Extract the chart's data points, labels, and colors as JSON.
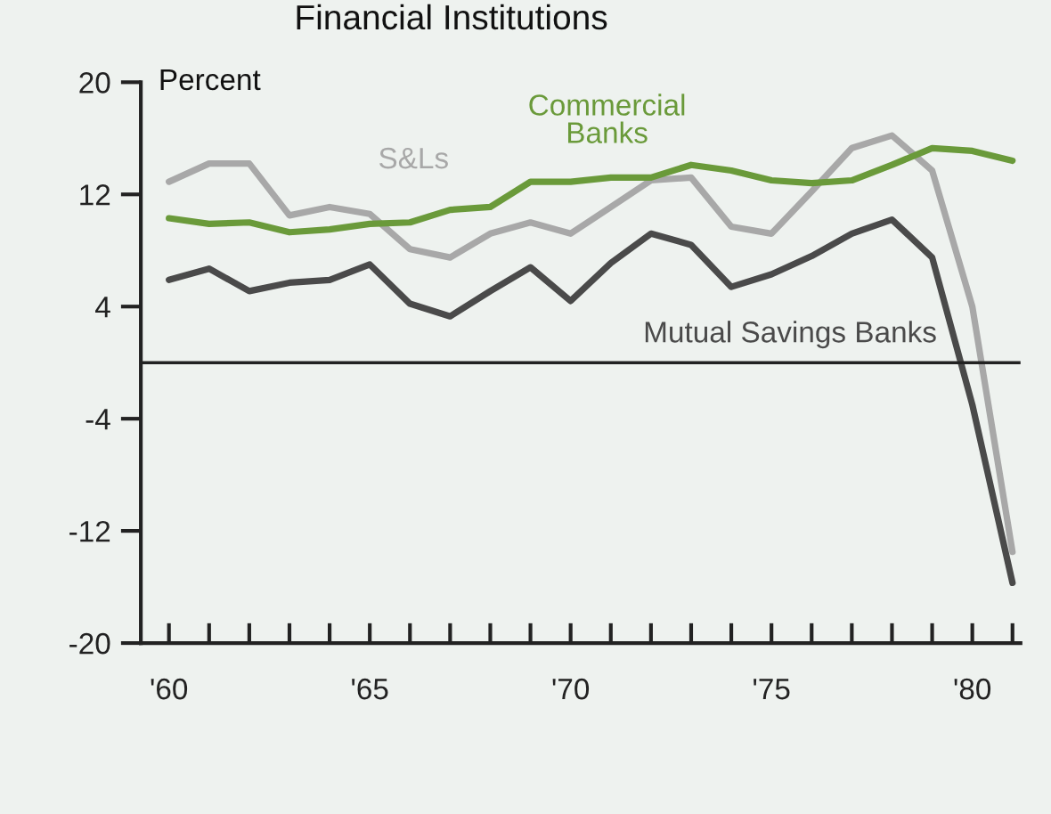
{
  "chart_data": {
    "type": "line",
    "title": "Financial Institutions",
    "ylabel": "Percent",
    "x": [
      1960,
      1961,
      1962,
      1963,
      1964,
      1965,
      1966,
      1967,
      1968,
      1969,
      1970,
      1971,
      1972,
      1973,
      1974,
      1975,
      1976,
      1977,
      1978,
      1979,
      1980,
      1981
    ],
    "series": [
      {
        "name": "S&Ls",
        "color": "#a8a8a8",
        "values": [
          12.9,
          14.2,
          14.2,
          10.5,
          11.1,
          10.6,
          8.1,
          7.5,
          9.2,
          10.0,
          9.2,
          11.1,
          13.0,
          13.2,
          9.7,
          9.2,
          12.2,
          15.3,
          16.2,
          13.7,
          4.0,
          -13.5
        ]
      },
      {
        "name": "Commercial Banks",
        "color": "#6a9a3a",
        "values": [
          10.3,
          9.9,
          10.0,
          9.3,
          9.5,
          9.9,
          10.0,
          10.9,
          11.1,
          12.9,
          12.9,
          13.2,
          13.2,
          14.1,
          13.7,
          13.0,
          12.8,
          13.0,
          14.1,
          15.3,
          15.1,
          14.4
        ]
      },
      {
        "name": "Mutual Savings Banks",
        "color": "#4a4a4a",
        "values": [
          5.9,
          6.7,
          5.1,
          5.7,
          5.9,
          7.0,
          4.2,
          3.3,
          5.1,
          6.8,
          4.4,
          7.1,
          9.2,
          8.4,
          5.4,
          6.3,
          7.6,
          9.2,
          10.2,
          7.5,
          -3.0,
          -15.7
        ]
      }
    ],
    "xlim": [
      1959.3,
      1981.2
    ],
    "xticks": [
      {
        "value": 1960,
        "label": "'60"
      },
      {
        "value": 1961,
        "label": null
      },
      {
        "value": 1962,
        "label": null
      },
      {
        "value": 1963,
        "label": null
      },
      {
        "value": 1964,
        "label": null
      },
      {
        "value": 1965,
        "label": "'65"
      },
      {
        "value": 1966,
        "label": null
      },
      {
        "value": 1967,
        "label": null
      },
      {
        "value": 1968,
        "label": null
      },
      {
        "value": 1969,
        "label": null
      },
      {
        "value": 1970,
        "label": "'70"
      },
      {
        "value": 1971,
        "label": null
      },
      {
        "value": 1972,
        "label": null
      },
      {
        "value": 1973,
        "label": null
      },
      {
        "value": 1974,
        "label": null
      },
      {
        "value": 1975,
        "label": "'75"
      },
      {
        "value": 1976,
        "label": null
      },
      {
        "value": 1977,
        "label": null
      },
      {
        "value": 1978,
        "label": null
      },
      {
        "value": 1979,
        "label": null
      },
      {
        "value": 1980,
        "label": "'80"
      },
      {
        "value": 1981,
        "label": null
      }
    ],
    "ylim": [
      -20,
      20
    ],
    "yticks": [
      -20,
      -12,
      -4,
      4,
      12,
      20
    ],
    "ref_lines": [
      {
        "axis": "y",
        "value": 0,
        "color": "#222222"
      }
    ],
    "grid": false,
    "legend": false,
    "marker": "none",
    "line_style": "solid"
  }
}
